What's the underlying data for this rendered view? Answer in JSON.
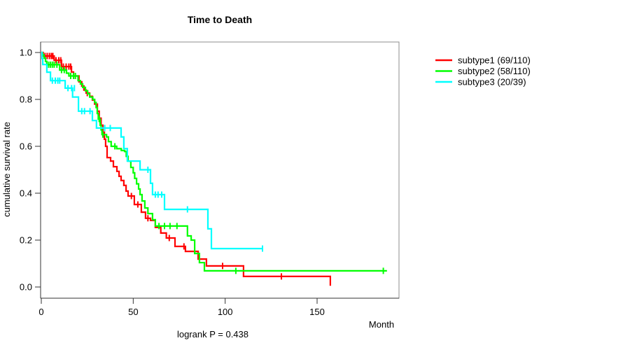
{
  "chart_data": {
    "type": "line",
    "subtype": "kaplan-meier-step",
    "title": "Time to Death",
    "xlabel": "Month",
    "ylabel": "cumulative survival rate",
    "annotation": "logrank P = 0.438",
    "xticks": [
      0,
      50,
      100,
      150
    ],
    "yticks": [
      "0.0",
      "0.2",
      "0.4",
      "0.6",
      "0.8",
      "1.0"
    ],
    "xlim": [
      0,
      195
    ],
    "ylim": [
      0,
      1
    ],
    "grid": false,
    "legend_position": "right-outside",
    "series": [
      {
        "name": "subtype1",
        "label": "subtype1 (69/110)",
        "color": "#ff0000",
        "end": 157.2,
        "steps": [
          [
            0,
            1.0
          ],
          [
            1,
            0.985
          ],
          [
            7,
            0.967
          ],
          [
            11,
            0.94
          ],
          [
            16.4,
            0.917
          ],
          [
            17.5,
            0.9
          ],
          [
            20.5,
            0.875
          ],
          [
            22,
            0.857
          ],
          [
            23.2,
            0.84
          ],
          [
            24.4,
            0.827
          ],
          [
            26.3,
            0.813
          ],
          [
            27.8,
            0.797
          ],
          [
            29,
            0.78
          ],
          [
            30.5,
            0.75
          ],
          [
            31.5,
            0.72
          ],
          [
            32.5,
            0.69
          ],
          [
            33.5,
            0.66
          ],
          [
            34.3,
            0.63
          ],
          [
            35,
            0.6
          ],
          [
            35.8,
            0.552
          ],
          [
            37.7,
            0.537
          ],
          [
            39.2,
            0.513
          ],
          [
            41.1,
            0.493
          ],
          [
            42.3,
            0.472
          ],
          [
            43.4,
            0.454
          ],
          [
            44.9,
            0.433
          ],
          [
            46.1,
            0.409
          ],
          [
            47.2,
            0.388
          ],
          [
            50.6,
            0.352
          ],
          [
            54.4,
            0.319
          ],
          [
            56.7,
            0.293
          ],
          [
            59.4,
            0.284
          ],
          [
            62,
            0.254
          ],
          [
            65,
            0.23
          ],
          [
            68,
            0.209
          ],
          [
            72.7,
            0.173
          ],
          [
            78.4,
            0.152
          ],
          [
            85.3,
            0.119
          ],
          [
            89.8,
            0.09
          ],
          [
            110,
            0.045
          ],
          [
            157.2,
            0.005
          ]
        ],
        "censors": [
          [
            2,
            0.985
          ],
          [
            3.2,
            0.985
          ],
          [
            4.4,
            0.985
          ],
          [
            5.5,
            0.985
          ],
          [
            6.3,
            0.985
          ],
          [
            8,
            0.967
          ],
          [
            9.5,
            0.967
          ],
          [
            10.6,
            0.967
          ],
          [
            12,
            0.94
          ],
          [
            13.5,
            0.94
          ],
          [
            15,
            0.94
          ],
          [
            16,
            0.94
          ],
          [
            18.5,
            0.9
          ],
          [
            25,
            0.827
          ],
          [
            49,
            0.388
          ],
          [
            52.5,
            0.352
          ],
          [
            58,
            0.293
          ],
          [
            69.6,
            0.209
          ],
          [
            77.6,
            0.173
          ],
          [
            98.6,
            0.09
          ],
          [
            130.6,
            0.045
          ]
        ]
      },
      {
        "name": "subtype2",
        "label": "subtype2 (58/110)",
        "color": "#00ff00",
        "end": 188,
        "steps": [
          [
            0,
            1.0
          ],
          [
            0.6,
            0.99
          ],
          [
            1.5,
            0.976
          ],
          [
            2.3,
            0.962
          ],
          [
            3,
            0.948
          ],
          [
            10,
            0.925
          ],
          [
            13.7,
            0.912
          ],
          [
            15,
            0.9
          ],
          [
            20,
            0.88
          ],
          [
            21.3,
            0.866
          ],
          [
            22.5,
            0.851
          ],
          [
            24,
            0.837
          ],
          [
            25.2,
            0.824
          ],
          [
            26.3,
            0.81
          ],
          [
            28,
            0.8
          ],
          [
            29,
            0.787
          ],
          [
            29.8,
            0.765
          ],
          [
            30.4,
            0.74
          ],
          [
            31,
            0.716
          ],
          [
            32,
            0.69
          ],
          [
            32.5,
            0.67
          ],
          [
            33,
            0.65
          ],
          [
            35.5,
            0.64
          ],
          [
            36.5,
            0.62
          ],
          [
            38,
            0.6
          ],
          [
            41,
            0.59
          ],
          [
            43.5,
            0.582
          ],
          [
            45.3,
            0.578
          ],
          [
            46.2,
            0.557
          ],
          [
            47.2,
            0.537
          ],
          [
            48.7,
            0.51
          ],
          [
            50,
            0.487
          ],
          [
            50.8,
            0.463
          ],
          [
            51.8,
            0.44
          ],
          [
            52.9,
            0.418
          ],
          [
            53.7,
            0.394
          ],
          [
            54.8,
            0.367
          ],
          [
            56.3,
            0.337
          ],
          [
            58,
            0.313
          ],
          [
            60.5,
            0.287
          ],
          [
            62,
            0.26
          ],
          [
            79.5,
            0.218
          ],
          [
            81.5,
            0.2
          ],
          [
            83.4,
            0.143
          ],
          [
            86,
            0.104
          ],
          [
            88.7,
            0.069
          ]
        ],
        "censors": [
          [
            4,
            0.948
          ],
          [
            5,
            0.948
          ],
          [
            6,
            0.948
          ],
          [
            7,
            0.948
          ],
          [
            8.5,
            0.948
          ],
          [
            11,
            0.925
          ],
          [
            12.5,
            0.925
          ],
          [
            16,
            0.9
          ],
          [
            17.5,
            0.9
          ],
          [
            18.5,
            0.9
          ],
          [
            31.5,
            0.716
          ],
          [
            33.5,
            0.65
          ],
          [
            40,
            0.6
          ],
          [
            64,
            0.26
          ],
          [
            67,
            0.26
          ],
          [
            70,
            0.26
          ],
          [
            73.8,
            0.26
          ],
          [
            105.8,
            0.069
          ],
          [
            186,
            0.069
          ]
        ]
      },
      {
        "name": "subtype3",
        "label": "subtype3 (20/39)",
        "color": "#00ffff",
        "end": 120.3,
        "steps": [
          [
            0,
            1.0
          ],
          [
            0.4,
            0.974
          ],
          [
            0.8,
            0.949
          ],
          [
            3,
            0.916
          ],
          [
            5,
            0.88
          ],
          [
            13,
            0.848
          ],
          [
            17,
            0.81
          ],
          [
            20.2,
            0.75
          ],
          [
            27.8,
            0.71
          ],
          [
            30,
            0.678
          ],
          [
            43.4,
            0.64
          ],
          [
            44.9,
            0.59
          ],
          [
            46.8,
            0.537
          ],
          [
            53.7,
            0.5
          ],
          [
            59.4,
            0.442
          ],
          [
            60.5,
            0.394
          ],
          [
            67,
            0.331
          ],
          [
            90.6,
            0.248
          ],
          [
            92.5,
            0.164
          ]
        ],
        "censors": [
          [
            6,
            0.88
          ],
          [
            7.6,
            0.88
          ],
          [
            9,
            0.88
          ],
          [
            10,
            0.88
          ],
          [
            14.5,
            0.848
          ],
          [
            16.5,
            0.848
          ],
          [
            18,
            0.848
          ],
          [
            22,
            0.75
          ],
          [
            23.5,
            0.75
          ],
          [
            26.5,
            0.75
          ],
          [
            34.5,
            0.678
          ],
          [
            37.5,
            0.678
          ],
          [
            58,
            0.5
          ],
          [
            62,
            0.394
          ],
          [
            63.5,
            0.394
          ],
          [
            65.5,
            0.394
          ],
          [
            79.5,
            0.331
          ],
          [
            120.3,
            0.164
          ]
        ]
      }
    ]
  }
}
